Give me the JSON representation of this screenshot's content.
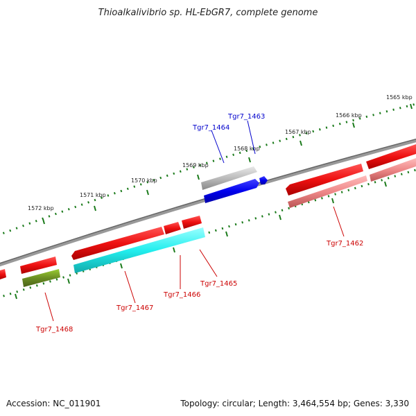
{
  "title": "Thioalkalivibrio sp. HL-EbGR7, complete genome",
  "footer": {
    "accession": "Accession: NC_011901",
    "topology": "Topology: circular; Length: 3,464,554 bp; Genes: 3,330"
  },
  "ticks": [
    "1565 kbp",
    "1566 kbp",
    "1567 kbp",
    "1568 kbp",
    "1569 kbp",
    "1570 kbp",
    "1571 kbp",
    "1572 kbp"
  ],
  "gene_labels": [
    {
      "name": "Tgr7_1463",
      "color": "#0000cc"
    },
    {
      "name": "Tgr7_1464",
      "color": "#0000cc"
    },
    {
      "name": "Tgr7_1462",
      "color": "#cc0000"
    },
    {
      "name": "Tgr7_1465",
      "color": "#cc0000"
    },
    {
      "name": "Tgr7_1466",
      "color": "#cc0000"
    },
    {
      "name": "Tgr7_1467",
      "color": "#cc0000"
    },
    {
      "name": "Tgr7_1468",
      "color": "#cc0000"
    }
  ],
  "colors": {
    "backbone": "#808080",
    "tick_dot": "#1a7a1a",
    "gene_red": "#ee1111",
    "gene_pink": "#ee8888",
    "gene_blue": "#0000ee",
    "gene_grey": "#bbbbbb",
    "gene_cyan": "#22eeee",
    "gene_olive": "#6b8e23"
  }
}
